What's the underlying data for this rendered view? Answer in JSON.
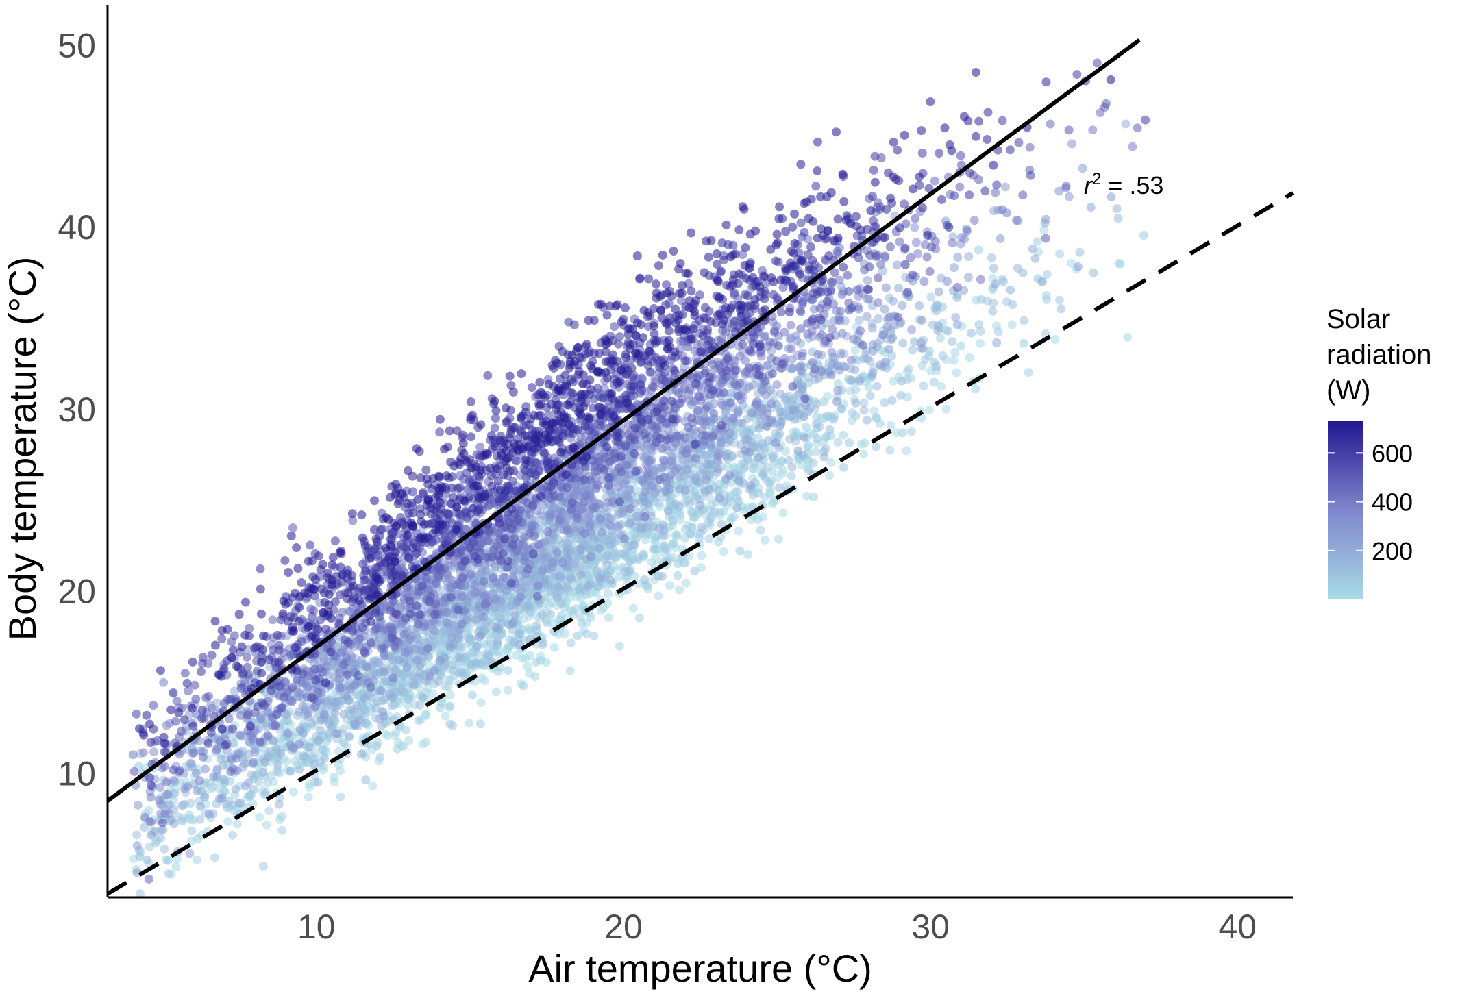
{
  "chart_data": {
    "type": "scatter",
    "xlabel": "Air temperature (°C)",
    "ylabel": "Body temperature (°C)",
    "xlim": [
      3.2,
      41.8
    ],
    "ylim": [
      3.2,
      52.2
    ],
    "x_ticks": [
      10,
      20,
      30,
      40
    ],
    "y_ticks": [
      10,
      20,
      30,
      40,
      50
    ],
    "grid": false,
    "annotation": {
      "var": "r",
      "sup": "2",
      "text": " = .53",
      "at": [
        36.8,
        42.2
      ]
    },
    "lines": [
      {
        "style": "solid",
        "color": "#000000",
        "x": [
          3.2,
          36.8
        ],
        "y": [
          8.5,
          50.3
        ]
      },
      {
        "style": "dashed",
        "color": "#000000",
        "x": [
          3.2,
          41.8
        ],
        "y": [
          3.4,
          41.9
        ]
      }
    ],
    "color_scale": {
      "title": [
        "Solar",
        "radiation",
        "(W)"
      ],
      "ticks": [
        200,
        400,
        600
      ],
      "range": [
        0,
        730
      ],
      "low_color": "#a8dbe6",
      "high_color": "#211791"
    },
    "point_cloud": {
      "n_points": 7000,
      "x_range": [
        4.0,
        37.0
      ],
      "description_of_density": "Body temp rises with air temp; high radiation points above the fitted line, low radiation points below",
      "fit_slope": 1.245,
      "fit_intercept": 4.5,
      "point_alpha": 0.55
    }
  }
}
